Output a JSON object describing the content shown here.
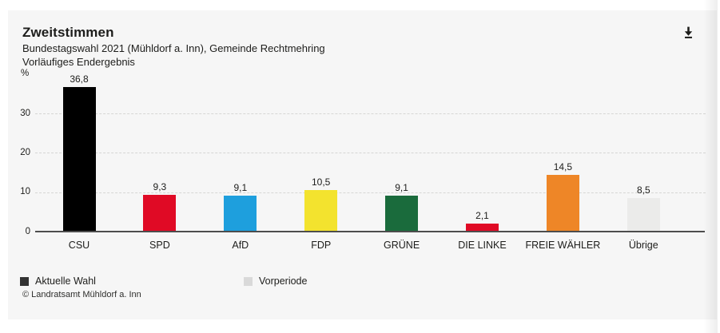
{
  "window": {
    "background": "#ffffff",
    "panel_background": "#f6f6f6"
  },
  "header": {
    "title": "Zweitstimmen",
    "subtitle_line1": "Bundestagswahl 2021 (Mühldorf a. Inn), Gemeinde Rechtmehring",
    "subtitle_line2": "Vorläufiges Endergebnis"
  },
  "chart_data": {
    "type": "bar",
    "title": "Zweitstimmen",
    "subtitle": "Bundestagswahl 2021 (Mühldorf a. Inn), Gemeinde Rechtmehring — Vorläufiges Endergebnis",
    "unit_label": "%",
    "categories": [
      "CSU",
      "SPD",
      "AfD",
      "FDP",
      "GRÜNE",
      "DIE LINKE",
      "FREIE WÄHLER",
      "Übrige"
    ],
    "values": [
      36.8,
      9.3,
      9.1,
      10.5,
      9.1,
      2.1,
      14.5,
      8.5
    ],
    "value_labels": [
      "36,8",
      "9,3",
      "9,1",
      "10,5",
      "9,1",
      "2,1",
      "14,5",
      "8,5"
    ],
    "bar_colors": [
      "#000000",
      "#e00a25",
      "#1e9fdd",
      "#f3e32e",
      "#1a6b3c",
      "#e00a25",
      "#ee8627",
      "#ebebea"
    ],
    "xlabel": "",
    "ylabel": "%",
    "yticks": [
      0,
      10,
      20,
      30
    ],
    "ylim": [
      0,
      40
    ],
    "grid": "horizontal-dashed",
    "legend_position": "bottom-left",
    "legend": [
      {
        "label": "Aktuelle Wahl",
        "color": "#333333"
      },
      {
        "label": "Vorperiode",
        "color": "#d9d9d9"
      }
    ]
  },
  "footer": {
    "copyright": "© Landratsamt Mühldorf a. Inn"
  },
  "colors": {
    "axis": "#4d4d4d",
    "gridline": "#d6d6d4",
    "text": "#1d1d1b"
  }
}
